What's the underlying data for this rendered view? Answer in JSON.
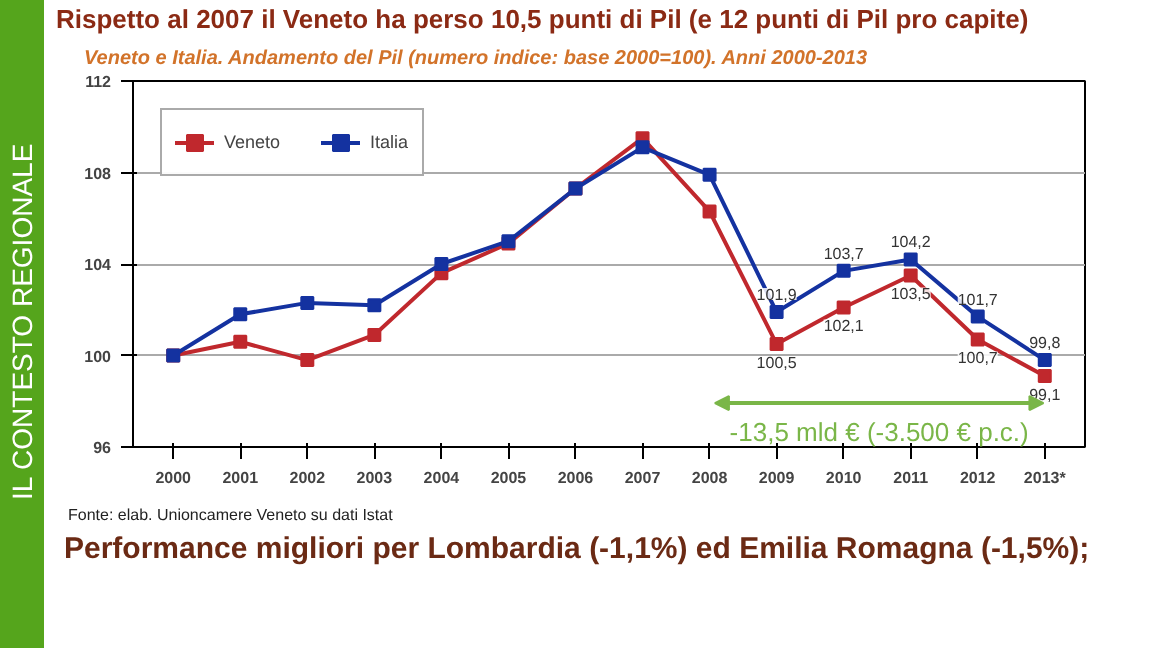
{
  "chart_data": {
    "type": "line",
    "title": "Rispetto al 2007 il Veneto ha perso 10,5 punti di Pil (e 12 punti di Pil pro capite)",
    "subtitle": "Veneto e Italia. Andamento del Pil (numero indice: base 2000=100). Anni 2000-2013",
    "categories": [
      "2000",
      "2001",
      "2002",
      "2003",
      "2004",
      "2005",
      "2006",
      "2007",
      "2008",
      "2009",
      "2010",
      "2011",
      "2012",
      "2013*"
    ],
    "series": [
      {
        "name": "Veneto",
        "color": "#c0282d",
        "values": [
          100,
          100.6,
          99.8,
          100.9,
          103.6,
          104.9,
          107.3,
          109.5,
          106.3,
          100.5,
          102.1,
          103.5,
          100.7,
          99.1
        ],
        "value_labels": [
          null,
          null,
          null,
          null,
          null,
          null,
          null,
          null,
          null,
          "100,5",
          "102,1",
          "103,5",
          "100,7",
          "99,1"
        ]
      },
      {
        "name": "Italia",
        "color": "#1432a0",
        "values": [
          100,
          101.8,
          102.3,
          102.2,
          104.0,
          105.0,
          107.3,
          109.1,
          107.9,
          101.9,
          103.7,
          104.2,
          101.7,
          99.8
        ],
        "value_labels": [
          null,
          null,
          null,
          null,
          null,
          null,
          null,
          null,
          null,
          "101,9",
          "103,7",
          "104,2",
          "101,7",
          "99,8"
        ]
      }
    ],
    "ylim": [
      96,
      112
    ],
    "yticks": [
      96,
      100,
      104,
      108,
      112
    ],
    "grid": "y",
    "legend": "top left",
    "marker": "square",
    "line_style": "solid",
    "annotations": [
      "-13,5 mld € (-3.500 € p.c.)",
      "IL CONTESTO REGIONALE",
      "Fonte: elab. Unioncamere Veneto su dati Istat",
      "Performance migliori per Lombardia (-1,1%) ed Emilia Romagna (-1,5%);"
    ]
  }
}
